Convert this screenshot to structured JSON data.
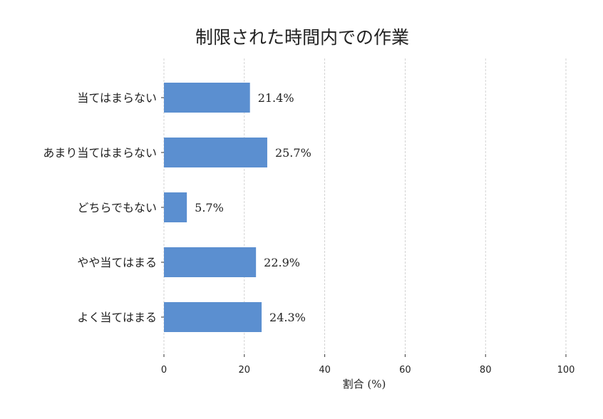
{
  "chart_data": {
    "type": "bar",
    "orientation": "horizontal",
    "title": "制限された時間内での作業",
    "xlabel": "割合 (%)",
    "ylabel": "",
    "xlim": [
      0,
      100
    ],
    "xticks": [
      0,
      20,
      40,
      60,
      80,
      100
    ],
    "grid": true,
    "categories": [
      "当てはまらない",
      "あまり当てはまらない",
      "どちらでもない",
      "やや当てはまる",
      "よく当てはまる"
    ],
    "values": [
      21.4,
      25.7,
      5.7,
      22.9,
      24.3
    ],
    "value_labels": [
      "21.4%",
      "25.7%",
      "5.7%",
      "22.9%",
      "24.3%"
    ],
    "bar_color": "#5b8fd0"
  }
}
